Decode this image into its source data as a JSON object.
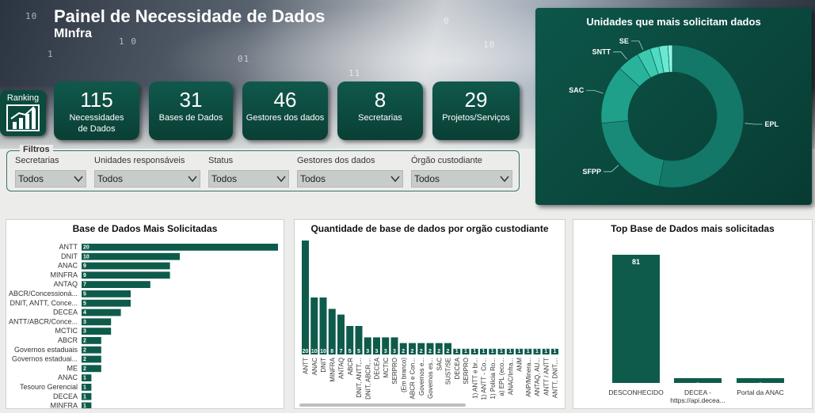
{
  "header": {
    "title": "Painel de Necessidade de Dados",
    "subtitle": "MInfra",
    "binary_lines": [
      "10",
      "1",
      "01",
      "0",
      "10",
      "11",
      "1 0"
    ]
  },
  "ranking": {
    "label": "Ranking",
    "icon": "bar-chart-growth-icon"
  },
  "kpis": [
    {
      "value": "115",
      "label": "Necessidades de Dados"
    },
    {
      "value": "31",
      "label": "Bases de Dados"
    },
    {
      "value": "46",
      "label": "Gestores dos dados"
    },
    {
      "value": "8",
      "label": "Secretarias"
    },
    {
      "value": "29",
      "label": "Projetos/Serviços"
    }
  ],
  "filters": {
    "title": "Filtros",
    "items": [
      {
        "label": "Secretarias",
        "value": "Todos"
      },
      {
        "label": "Unidades responsáveis",
        "value": "Todos"
      },
      {
        "label": "Status",
        "value": "Todos"
      },
      {
        "label": "Gestores dos dados",
        "value": "Todos"
      },
      {
        "label": "Órgão custodiante",
        "value": "Todos"
      }
    ]
  },
  "colors": {
    "accent": "#0c4a3e",
    "bar": "#0e5b4c",
    "donut": [
      "#137868",
      "#1a8a78",
      "#1fa08a",
      "#2ab39c",
      "#3cc9b0",
      "#4fdac2",
      "#6ae8d3",
      "#8ff3e3"
    ]
  },
  "chart_data": [
    {
      "type": "pie",
      "title": "Unidades que mais solicitam dados",
      "labels": [
        "EPL",
        "SFPP",
        "SAC",
        "SNTT",
        "SE",
        "",
        "",
        ""
      ],
      "values": [
        52,
        20,
        13,
        5,
        3,
        2,
        2,
        1
      ]
    },
    {
      "type": "bar",
      "orientation": "horizontal",
      "title": "Base de Dados Mais Solicitadas",
      "categories": [
        "ANTT",
        "DNIT",
        "ANAC",
        "MINFRA",
        "ANTAQ",
        "ABCR/Concessioná...",
        "DNIT, ANTT, Conce...",
        "DECEA",
        "ANTT/ABCR/Conce...",
        "MCTIC",
        "ABCR",
        "Governos estaduais",
        "Governos estaduai...",
        "ME",
        "ANAC",
        "Tesouro Gerencial",
        "DECEA",
        "MINFRA"
      ],
      "values": [
        20,
        10,
        9,
        9,
        7,
        5,
        5,
        4,
        3,
        3,
        2,
        2,
        2,
        2,
        1,
        1,
        1,
        1
      ],
      "xlim": [
        0,
        20
      ]
    },
    {
      "type": "bar",
      "title": "Quantidade de base de dados por orgão custodiante",
      "categories": [
        "ANTT",
        "ANAC",
        "DNIT",
        "MINFRA",
        "ANTAQ",
        "ABCR",
        "DNIT, ANTT,...",
        "DNIT, ABCR,...",
        "DECEA",
        "MCTIC",
        "SERPRO",
        "(Em branco)",
        "ABCR e Con...",
        "Governos e...",
        "Governos es...",
        "SAC",
        "SUST/SE",
        "DECEA",
        "SERPRO",
        "1) ANTT e br...",
        "1) ANTT - Co...",
        "1) Polícia Ro...",
        "a) EPL (eco...",
        "ANAC/Infra...",
        "ANM",
        "ANP/Minera...",
        "ANTAQ, AU...",
        "ANTT / ANTT",
        "ANTT, DNIT,..."
      ],
      "values": [
        20,
        10,
        10,
        8,
        7,
        5,
        5,
        3,
        3,
        3,
        3,
        2,
        2,
        2,
        2,
        2,
        2,
        1,
        1,
        1,
        1,
        1,
        1,
        1,
        1,
        1,
        1,
        1,
        1
      ],
      "ylim": [
        0,
        20
      ]
    },
    {
      "type": "bar",
      "title": "Top Base de Dados mais solicitadas",
      "categories": [
        "DESCONHECIDO",
        "DECEA - https://api.decea...",
        "Portal da ANAC"
      ],
      "values": [
        81,
        3,
        3
      ],
      "ylim": [
        0,
        81
      ]
    }
  ]
}
